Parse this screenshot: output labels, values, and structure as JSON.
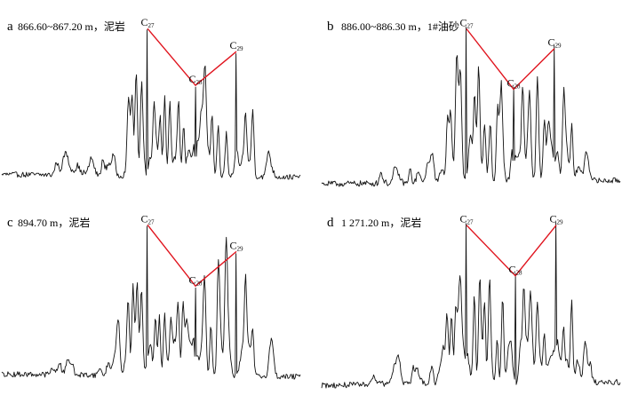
{
  "chart_data": [
    {
      "type": "line",
      "panel": "a",
      "caption": "866.60~867.20 m，泥岩",
      "peaks": [
        {
          "label": "C",
          "sub": "27",
          "height": 0.97
        },
        {
          "label": "C",
          "sub": "28",
          "height": 0.6
        },
        {
          "label": "C",
          "sub": "29",
          "height": 0.82
        }
      ]
    },
    {
      "type": "line",
      "panel": "b",
      "caption": "886.00~886.30 m，1#油砂",
      "peaks": [
        {
          "label": "C",
          "sub": "27",
          "height": 0.97
        },
        {
          "label": "C",
          "sub": "28",
          "height": 0.6
        },
        {
          "label": "C",
          "sub": "29",
          "height": 0.85
        }
      ]
    },
    {
      "type": "line",
      "panel": "c",
      "caption": "894.70 m，泥岩",
      "peaks": [
        {
          "label": "C",
          "sub": "27",
          "height": 0.97
        },
        {
          "label": "C",
          "sub": "28",
          "height": 0.58
        },
        {
          "label": "C",
          "sub": "29",
          "height": 0.8
        }
      ]
    },
    {
      "type": "line",
      "panel": "d",
      "caption": "1 271.20 m，泥岩",
      "peaks": [
        {
          "label": "C",
          "sub": "27",
          "height": 0.97
        },
        {
          "label": "C",
          "sub": "28",
          "height": 0.67
        },
        {
          "label": "C",
          "sub": "29",
          "height": 0.97
        }
      ]
    }
  ]
}
